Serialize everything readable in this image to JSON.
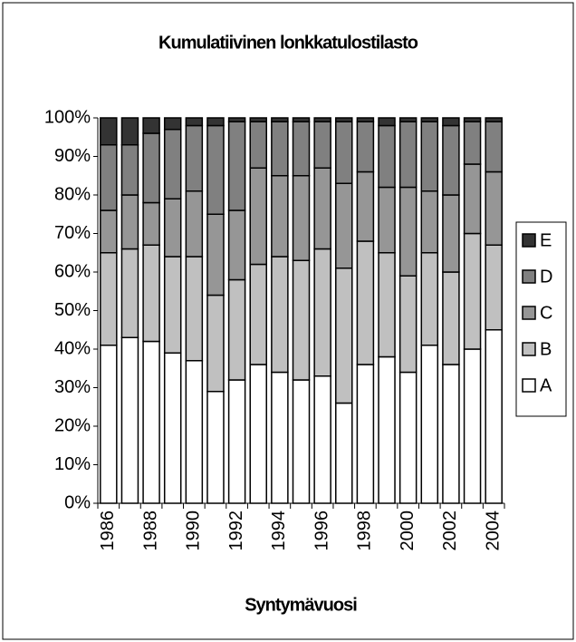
{
  "chart_data": {
    "type": "bar",
    "stacked": true,
    "title": "Kumulatiivinen lonkkatulostilasto",
    "x_label": "Syntymävuosi",
    "categories": [
      "1986",
      null,
      "1988",
      null,
      "1990",
      null,
      "1992",
      null,
      "1994",
      null,
      "1996",
      null,
      "1998",
      null,
      "2000",
      null,
      "2002",
      null,
      "2004"
    ],
    "series": [
      {
        "name": "A",
        "color": "#ffffff",
        "values": [
          41,
          43,
          42,
          39,
          37,
          29,
          32,
          36,
          34,
          32,
          33,
          26,
          36,
          38,
          34,
          41,
          36,
          40,
          45
        ]
      },
      {
        "name": "B",
        "color": "#c0c0c0",
        "values": [
          24,
          23,
          25,
          25,
          27,
          25,
          26,
          26,
          30,
          31,
          33,
          35,
          32,
          27,
          25,
          24,
          24,
          30,
          22
        ]
      },
      {
        "name": "C",
        "color": "#969696",
        "values": [
          11,
          14,
          11,
          15,
          17,
          21,
          18,
          25,
          21,
          22,
          21,
          22,
          18,
          17,
          23,
          16,
          20,
          18,
          19
        ]
      },
      {
        "name": "D",
        "color": "#808080",
        "values": [
          17,
          13,
          18,
          18,
          17,
          23,
          23,
          12,
          14,
          14,
          12,
          16,
          13,
          16,
          17,
          18,
          18,
          11,
          13
        ]
      },
      {
        "name": "E",
        "color": "#333333",
        "values": [
          7,
          7,
          4,
          3,
          2,
          2,
          1,
          1,
          1,
          1,
          1,
          1,
          1,
          2,
          1,
          1,
          2,
          1,
          1
        ]
      }
    ],
    "ylim": [
      0,
      100
    ],
    "yticks": [
      {
        "value": 0,
        "label": "0%"
      },
      {
        "value": 10,
        "label": "10%"
      },
      {
        "value": 20,
        "label": "20%"
      },
      {
        "value": 30,
        "label": "30%"
      },
      {
        "value": 40,
        "label": "40%"
      },
      {
        "value": 50,
        "label": "50%"
      },
      {
        "value": 60,
        "label": "60%"
      },
      {
        "value": 70,
        "label": "70%"
      },
      {
        "value": 80,
        "label": "80%"
      },
      {
        "value": 90,
        "label": "90%"
      },
      {
        "value": 100,
        "label": "100%"
      }
    ],
    "legend": "right"
  }
}
